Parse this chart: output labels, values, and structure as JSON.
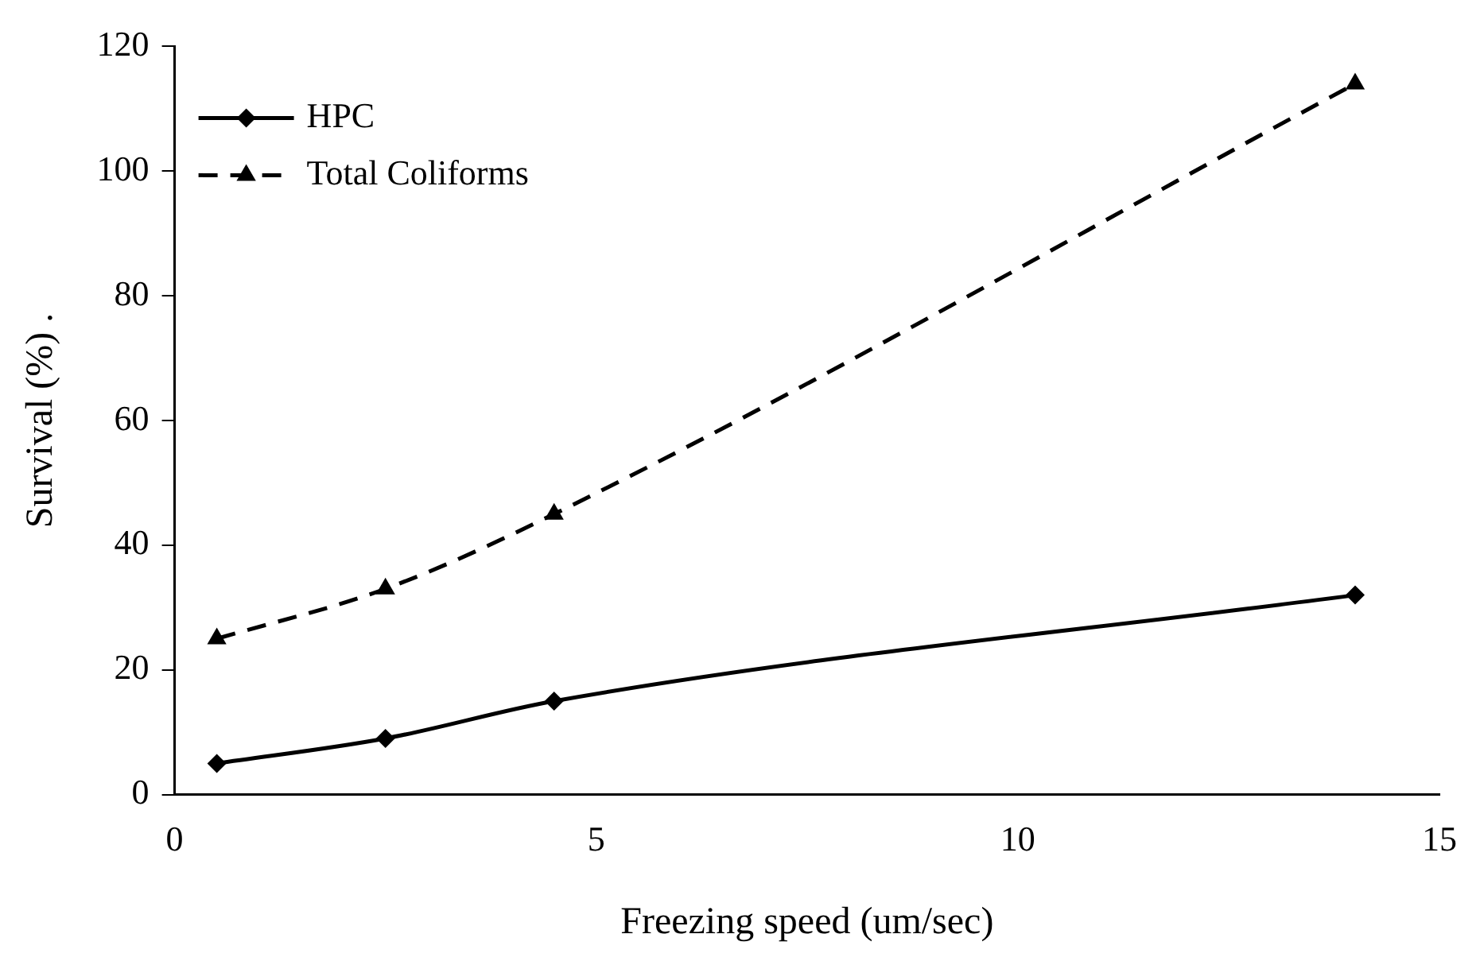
{
  "chart_data": {
    "type": "line",
    "xlabel": "Freezing speed (um/sec)",
    "ylabel": "Survival (%) .",
    "x": [
      0.5,
      2.5,
      4.5,
      14
    ],
    "series": [
      {
        "name": "HPC",
        "color": "#000000",
        "values": [
          5,
          9,
          15,
          32
        ],
        "marker": "diamond",
        "line_style": "solid"
      },
      {
        "name": "Total Coliforms",
        "color": "#000000",
        "values": [
          25,
          33,
          45,
          114
        ],
        "marker": "triangle",
        "line_style": "dashed"
      }
    ],
    "xlim": [
      0,
      15
    ],
    "xticks": [
      0,
      5,
      10,
      15
    ],
    "ylim": [
      0,
      120
    ],
    "yticks": [
      0,
      20,
      40,
      60,
      80,
      100,
      120
    ],
    "grid": false,
    "legend": "top left"
  }
}
